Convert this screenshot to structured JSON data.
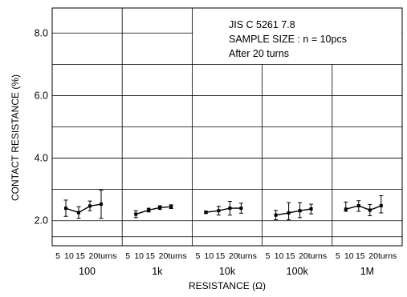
{
  "chart_data": {
    "type": "scatter",
    "ylabel": "CONTACT RESISTANCE (%)",
    "xlabel": "RESISTANCE (Ω)",
    "ylim": [
      1.2,
      8.8
    ],
    "yticks": [
      2.0,
      4.0,
      6.0,
      8.0
    ],
    "ytick_labels": [
      "2.0",
      "4.0",
      "6.0",
      "8.0"
    ],
    "grid": true,
    "annotation": [
      "JIS C  5261  7.8",
      "SAMPLE  SIZE : n = 10pcs",
      "After  20  turns"
    ],
    "turn_labels": [
      "5",
      "10",
      "15",
      "20turns"
    ],
    "turns": [
      5,
      10,
      15,
      20
    ],
    "panels": [
      {
        "label": "100",
        "means": [
          2.4,
          2.26,
          2.47,
          2.53
        ],
        "lows": [
          2.14,
          2.08,
          2.32,
          2.08
        ],
        "highs": [
          2.66,
          2.45,
          2.63,
          2.98
        ]
      },
      {
        "label": "1k",
        "means": [
          2.21,
          2.34,
          2.42,
          2.45
        ],
        "lows": [
          2.1,
          2.28,
          2.36,
          2.39
        ],
        "highs": [
          2.32,
          2.4,
          2.48,
          2.51
        ]
      },
      {
        "label": "10k",
        "means": [
          2.27,
          2.32,
          2.4,
          2.4
        ],
        "lows": [
          2.23,
          2.18,
          2.18,
          2.24
        ],
        "highs": [
          2.31,
          2.46,
          2.62,
          2.56
        ]
      },
      {
        "label": "100k",
        "means": [
          2.18,
          2.25,
          2.32,
          2.38
        ],
        "lows": [
          2.03,
          2.03,
          2.1,
          2.22
        ],
        "highs": [
          2.33,
          2.58,
          2.58,
          2.53
        ]
      },
      {
        "label": "1M",
        "means": [
          2.37,
          2.48,
          2.34,
          2.48
        ],
        "lows": [
          2.3,
          2.3,
          2.16,
          2.25
        ],
        "highs": [
          2.6,
          2.64,
          2.52,
          2.8
        ]
      }
    ]
  }
}
